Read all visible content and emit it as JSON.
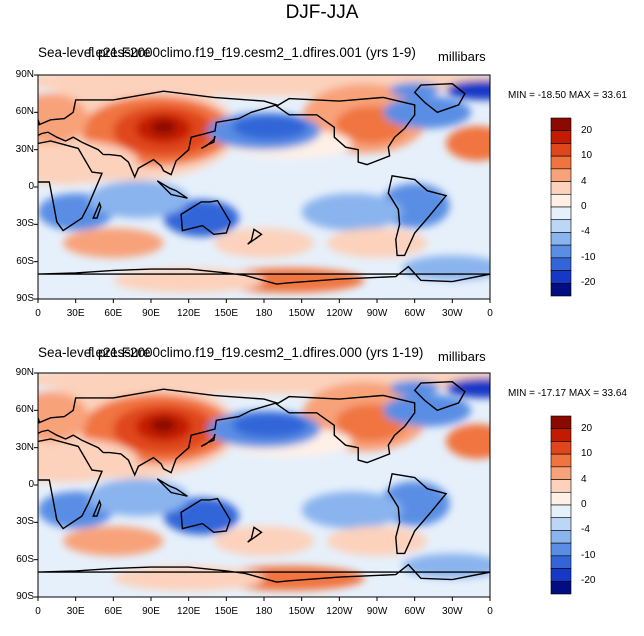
{
  "figure": {
    "title": "DJF-JJA"
  },
  "panels": [
    {
      "title_variable": "Sea-level pressure",
      "title_case": "f.e21.F2000climo.f19_f19.cesm2_1.dfires.001 (yrs 1-9)",
      "units": "millibars",
      "min_max": "MIN = -18.50 MAX =  33.61"
    },
    {
      "title_variable": "Sea-level pressure",
      "title_case": "f.e21.F2000climo.f19_f19.cesm2_1.dfires.000 (yrs 1-19)",
      "units": "millibars",
      "min_max": "MIN = -17.17 MAX =  33.64"
    }
  ],
  "axes": {
    "lat_ticks": [
      "90N",
      "60N",
      "30N",
      "0",
      "30S",
      "60S",
      "90S"
    ],
    "lon_ticks": [
      "0",
      "30E",
      "60E",
      "90E",
      "120E",
      "150E",
      "180",
      "150W",
      "120W",
      "90W",
      "60W",
      "30W",
      "0"
    ]
  },
  "colorbar": {
    "labels": [
      "20",
      "10",
      "4",
      "0",
      "-4",
      "-10",
      "-20"
    ],
    "colors": [
      "#8b0a00",
      "#c31a00",
      "#e0461c",
      "#f07440",
      "#f8a27a",
      "#fcd2bc",
      "#fff0e6",
      "#e6f0fb",
      "#bcd6f6",
      "#8ab4ee",
      "#5a8ee4",
      "#3266d8",
      "#1638c6",
      "#000e82"
    ]
  },
  "colors": {
    "land_outline": "#000000",
    "background": "#ffffff"
  }
}
